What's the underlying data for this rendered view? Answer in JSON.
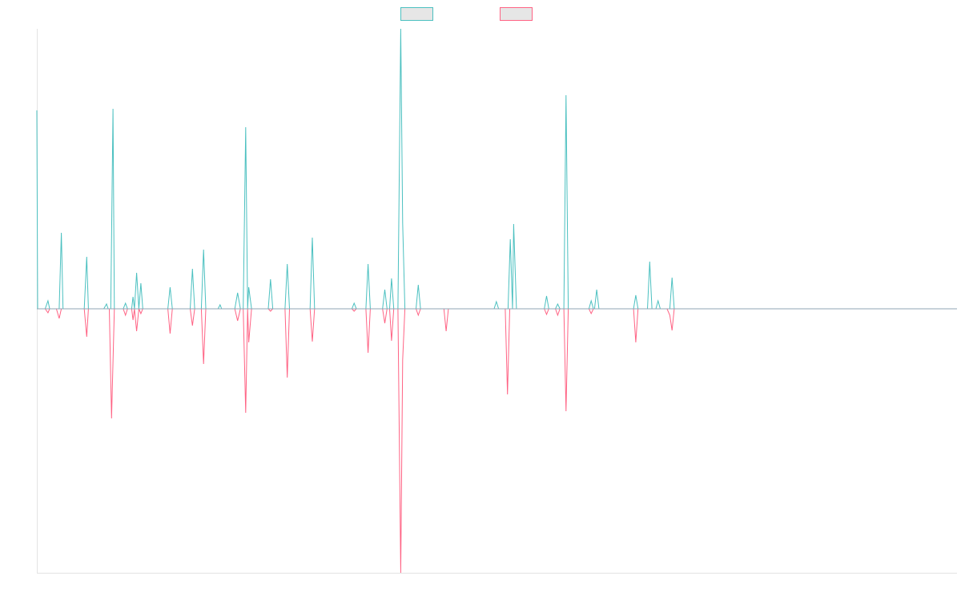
{
  "chart_data": {
    "type": "line",
    "title": "",
    "xlabel": "",
    "ylabel": "",
    "ylim": [
      -330,
      350
    ],
    "legend": {
      "placement": "top-center",
      "show_labels": false
    },
    "grid": false,
    "series": [
      {
        "color": "#4bc0c0",
        "legend_fill": "#e6e6e6",
        "points": [
          [
            0,
            248
          ],
          [
            0.3,
            0
          ],
          [
            3,
            0
          ],
          [
            4,
            10
          ],
          [
            4.6,
            0
          ],
          [
            8,
            0
          ],
          [
            8.8,
            95
          ],
          [
            9.4,
            0
          ],
          [
            17,
            0
          ],
          [
            17.9,
            65
          ],
          [
            18.5,
            0
          ],
          [
            24,
            0
          ],
          [
            25,
            6
          ],
          [
            25.6,
            0
          ],
          [
            26.5,
            0
          ],
          [
            27.3,
            250
          ],
          [
            27.8,
            0
          ],
          [
            31,
            0
          ],
          [
            31.8,
            7
          ],
          [
            32.5,
            0
          ],
          [
            34,
            0
          ],
          [
            34.5,
            15
          ],
          [
            35,
            0
          ],
          [
            35.8,
            45
          ],
          [
            36.6,
            0
          ],
          [
            37.3,
            32
          ],
          [
            38,
            0
          ],
          [
            47,
            0
          ],
          [
            47.8,
            27
          ],
          [
            48.6,
            0
          ],
          [
            55,
            0
          ],
          [
            55.8,
            50
          ],
          [
            56.6,
            0
          ],
          [
            59,
            0
          ],
          [
            59.8,
            74
          ],
          [
            60.6,
            0
          ],
          [
            65,
            0
          ],
          [
            65.7,
            5
          ],
          [
            66.3,
            0
          ],
          [
            71,
            0
          ],
          [
            72,
            20
          ],
          [
            73,
            0
          ],
          [
            74,
            0
          ],
          [
            74.9,
            227
          ],
          [
            75.6,
            0
          ],
          [
            76,
            27
          ],
          [
            77,
            0
          ],
          [
            83,
            0
          ],
          [
            83.8,
            37
          ],
          [
            84.6,
            0
          ],
          [
            89,
            0
          ],
          [
            89.8,
            56
          ],
          [
            90.6,
            0
          ],
          [
            98,
            0
          ],
          [
            98.8,
            89
          ],
          [
            99.6,
            0
          ],
          [
            113,
            0
          ],
          [
            113.8,
            7
          ],
          [
            114.6,
            0
          ],
          [
            118,
            0
          ],
          [
            118.8,
            56
          ],
          [
            119.6,
            0
          ],
          [
            124,
            0
          ],
          [
            124.8,
            24
          ],
          [
            125.6,
            0
          ],
          [
            126.5,
            0
          ],
          [
            127.2,
            38
          ],
          [
            128,
            0
          ],
          [
            129.5,
            0
          ],
          [
            130.5,
            350
          ],
          [
            131.2,
            107
          ],
          [
            132,
            0
          ],
          [
            136,
            0
          ],
          [
            136.8,
            30
          ],
          [
            137.6,
            0
          ],
          [
            164,
            0
          ],
          [
            164.8,
            9
          ],
          [
            165.6,
            0
          ],
          [
            169,
            0
          ],
          [
            169.8,
            87
          ],
          [
            170.6,
            0
          ],
          [
            171,
            106
          ],
          [
            172,
            0
          ],
          [
            182,
            0
          ],
          [
            182.8,
            16
          ],
          [
            183.6,
            0
          ],
          [
            186,
            0
          ],
          [
            186.8,
            6
          ],
          [
            187.6,
            0
          ],
          [
            189,
            0
          ],
          [
            189.8,
            267
          ],
          [
            190.6,
            0
          ],
          [
            198,
            0
          ],
          [
            198.8,
            10
          ],
          [
            199.6,
            0
          ],
          [
            200,
            0
          ],
          [
            200.8,
            24
          ],
          [
            201.6,
            0
          ],
          [
            214,
            0
          ],
          [
            214.8,
            17
          ],
          [
            215.6,
            0
          ],
          [
            219,
            0
          ],
          [
            219.8,
            59
          ],
          [
            220.6,
            0
          ],
          [
            222,
            0
          ],
          [
            222.8,
            10
          ],
          [
            223.6,
            0
          ],
          [
            227,
            0
          ],
          [
            227.8,
            39
          ],
          [
            228.6,
            0
          ],
          [
            330,
            0
          ]
        ]
      },
      {
        "color": "#ff6384",
        "legend_fill": "#e6e6e6",
        "points": [
          [
            0,
            0
          ],
          [
            3,
            0
          ],
          [
            4,
            -5
          ],
          [
            4.6,
            0
          ],
          [
            7,
            0
          ],
          [
            8,
            -12
          ],
          [
            8.8,
            0
          ],
          [
            17,
            0
          ],
          [
            17.9,
            -35
          ],
          [
            18.5,
            0
          ],
          [
            26,
            0
          ],
          [
            26.8,
            -137
          ],
          [
            27.8,
            0
          ],
          [
            31,
            0
          ],
          [
            31.8,
            -8
          ],
          [
            32.5,
            0
          ],
          [
            34,
            0
          ],
          [
            34.5,
            -14
          ],
          [
            35,
            0
          ],
          [
            35.8,
            -28
          ],
          [
            36.6,
            0
          ],
          [
            37.3,
            -6
          ],
          [
            38,
            0
          ],
          [
            47,
            0
          ],
          [
            47.8,
            -31
          ],
          [
            48.6,
            0
          ],
          [
            55,
            0
          ],
          [
            55.8,
            -21
          ],
          [
            56.6,
            0
          ],
          [
            59,
            0
          ],
          [
            59.8,
            -69
          ],
          [
            60.6,
            0
          ],
          [
            71,
            0
          ],
          [
            72,
            -15
          ],
          [
            73,
            0
          ],
          [
            74,
            0
          ],
          [
            74.9,
            -130
          ],
          [
            75.6,
            0
          ],
          [
            76,
            -42
          ],
          [
            77,
            0
          ],
          [
            83,
            0
          ],
          [
            83.8,
            -3
          ],
          [
            84.6,
            0
          ],
          [
            89,
            0
          ],
          [
            89.8,
            -86
          ],
          [
            90.6,
            0
          ],
          [
            98,
            0
          ],
          [
            98.8,
            -41
          ],
          [
            99.6,
            0
          ],
          [
            113,
            0
          ],
          [
            113.8,
            -3
          ],
          [
            114.6,
            0
          ],
          [
            118,
            0
          ],
          [
            118.8,
            -55
          ],
          [
            119.6,
            0
          ],
          [
            124,
            0
          ],
          [
            124.8,
            -18
          ],
          [
            125.6,
            0
          ],
          [
            126.5,
            0
          ],
          [
            127.2,
            -40
          ],
          [
            128,
            0
          ],
          [
            129.5,
            0
          ],
          [
            130.5,
            -330
          ],
          [
            131.2,
            -64
          ],
          [
            132,
            0
          ],
          [
            136,
            0
          ],
          [
            136.8,
            -8
          ],
          [
            137.6,
            0
          ],
          [
            146,
            0
          ],
          [
            146.8,
            -28
          ],
          [
            147.6,
            0
          ],
          [
            168,
            0
          ],
          [
            168.8,
            -107
          ],
          [
            169.6,
            0
          ],
          [
            182,
            0
          ],
          [
            182.8,
            -7
          ],
          [
            183.6,
            0
          ],
          [
            186,
            0
          ],
          [
            186.8,
            -8
          ],
          [
            187.6,
            0
          ],
          [
            189,
            0
          ],
          [
            189.8,
            -128
          ],
          [
            190.6,
            0
          ],
          [
            198,
            0
          ],
          [
            198.8,
            -6
          ],
          [
            199.6,
            0
          ],
          [
            214,
            0
          ],
          [
            214.8,
            -42
          ],
          [
            215.6,
            0
          ],
          [
            226,
            0
          ],
          [
            227,
            -8
          ],
          [
            227.8,
            -27
          ],
          [
            228.6,
            0
          ],
          [
            330,
            0
          ]
        ]
      }
    ]
  }
}
